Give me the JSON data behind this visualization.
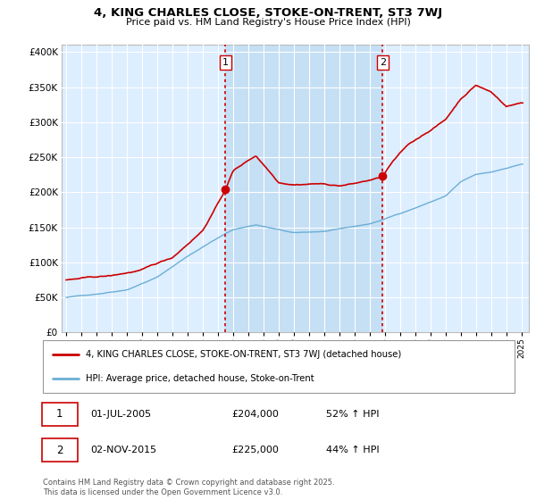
{
  "title": "4, KING CHARLES CLOSE, STOKE-ON-TRENT, ST3 7WJ",
  "subtitle": "Price paid vs. HM Land Registry's House Price Index (HPI)",
  "legend_entry1": "4, KING CHARLES CLOSE, STOKE-ON-TRENT, ST3 7WJ (detached house)",
  "legend_entry2": "HPI: Average price, detached house, Stoke-on-Trent",
  "transaction1": {
    "label": "1",
    "date": "01-JUL-2005",
    "price": "£204,000",
    "hpi": "52% ↑ HPI",
    "x_year": 2005.5
  },
  "transaction2": {
    "label": "2",
    "date": "02-NOV-2015",
    "price": "£225,000",
    "hpi": "44% ↑ HPI",
    "x_year": 2015.85
  },
  "footer": "Contains HM Land Registry data © Crown copyright and database right 2025.\nThis data is licensed under the Open Government Licence v3.0.",
  "ylim": [
    0,
    410000
  ],
  "xlim_start": 1994.7,
  "xlim_end": 2025.5,
  "hpi_color": "#6baed6",
  "price_color": "#cc0000",
  "bg_color": "#ddeeff",
  "shade_color": "#c5dff5",
  "grid_color": "#ffffff",
  "vline_color": "#cc0000",
  "dot_color": "#cc0000"
}
